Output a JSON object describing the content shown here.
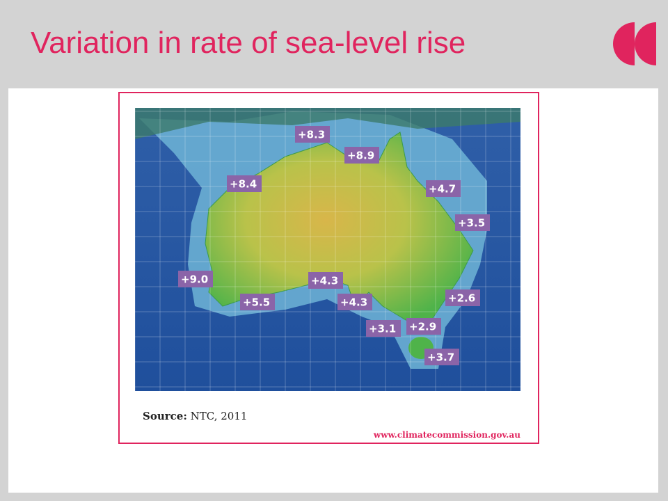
{
  "header": {
    "title": "Variation in rate of sea-level rise"
  },
  "map": {
    "labels": [
      "+8.3",
      "+8.9",
      "+8.4",
      "+4.7",
      "+3.5",
      "+9.0",
      "+4.3",
      "+5.5",
      "+4.3",
      "+2.6",
      "+3.1",
      "+2.9",
      "+3.7"
    ]
  },
  "source": {
    "label": "Source:",
    "text": "NTC, 2011"
  },
  "url": "www.climatecommission.gov.au"
}
